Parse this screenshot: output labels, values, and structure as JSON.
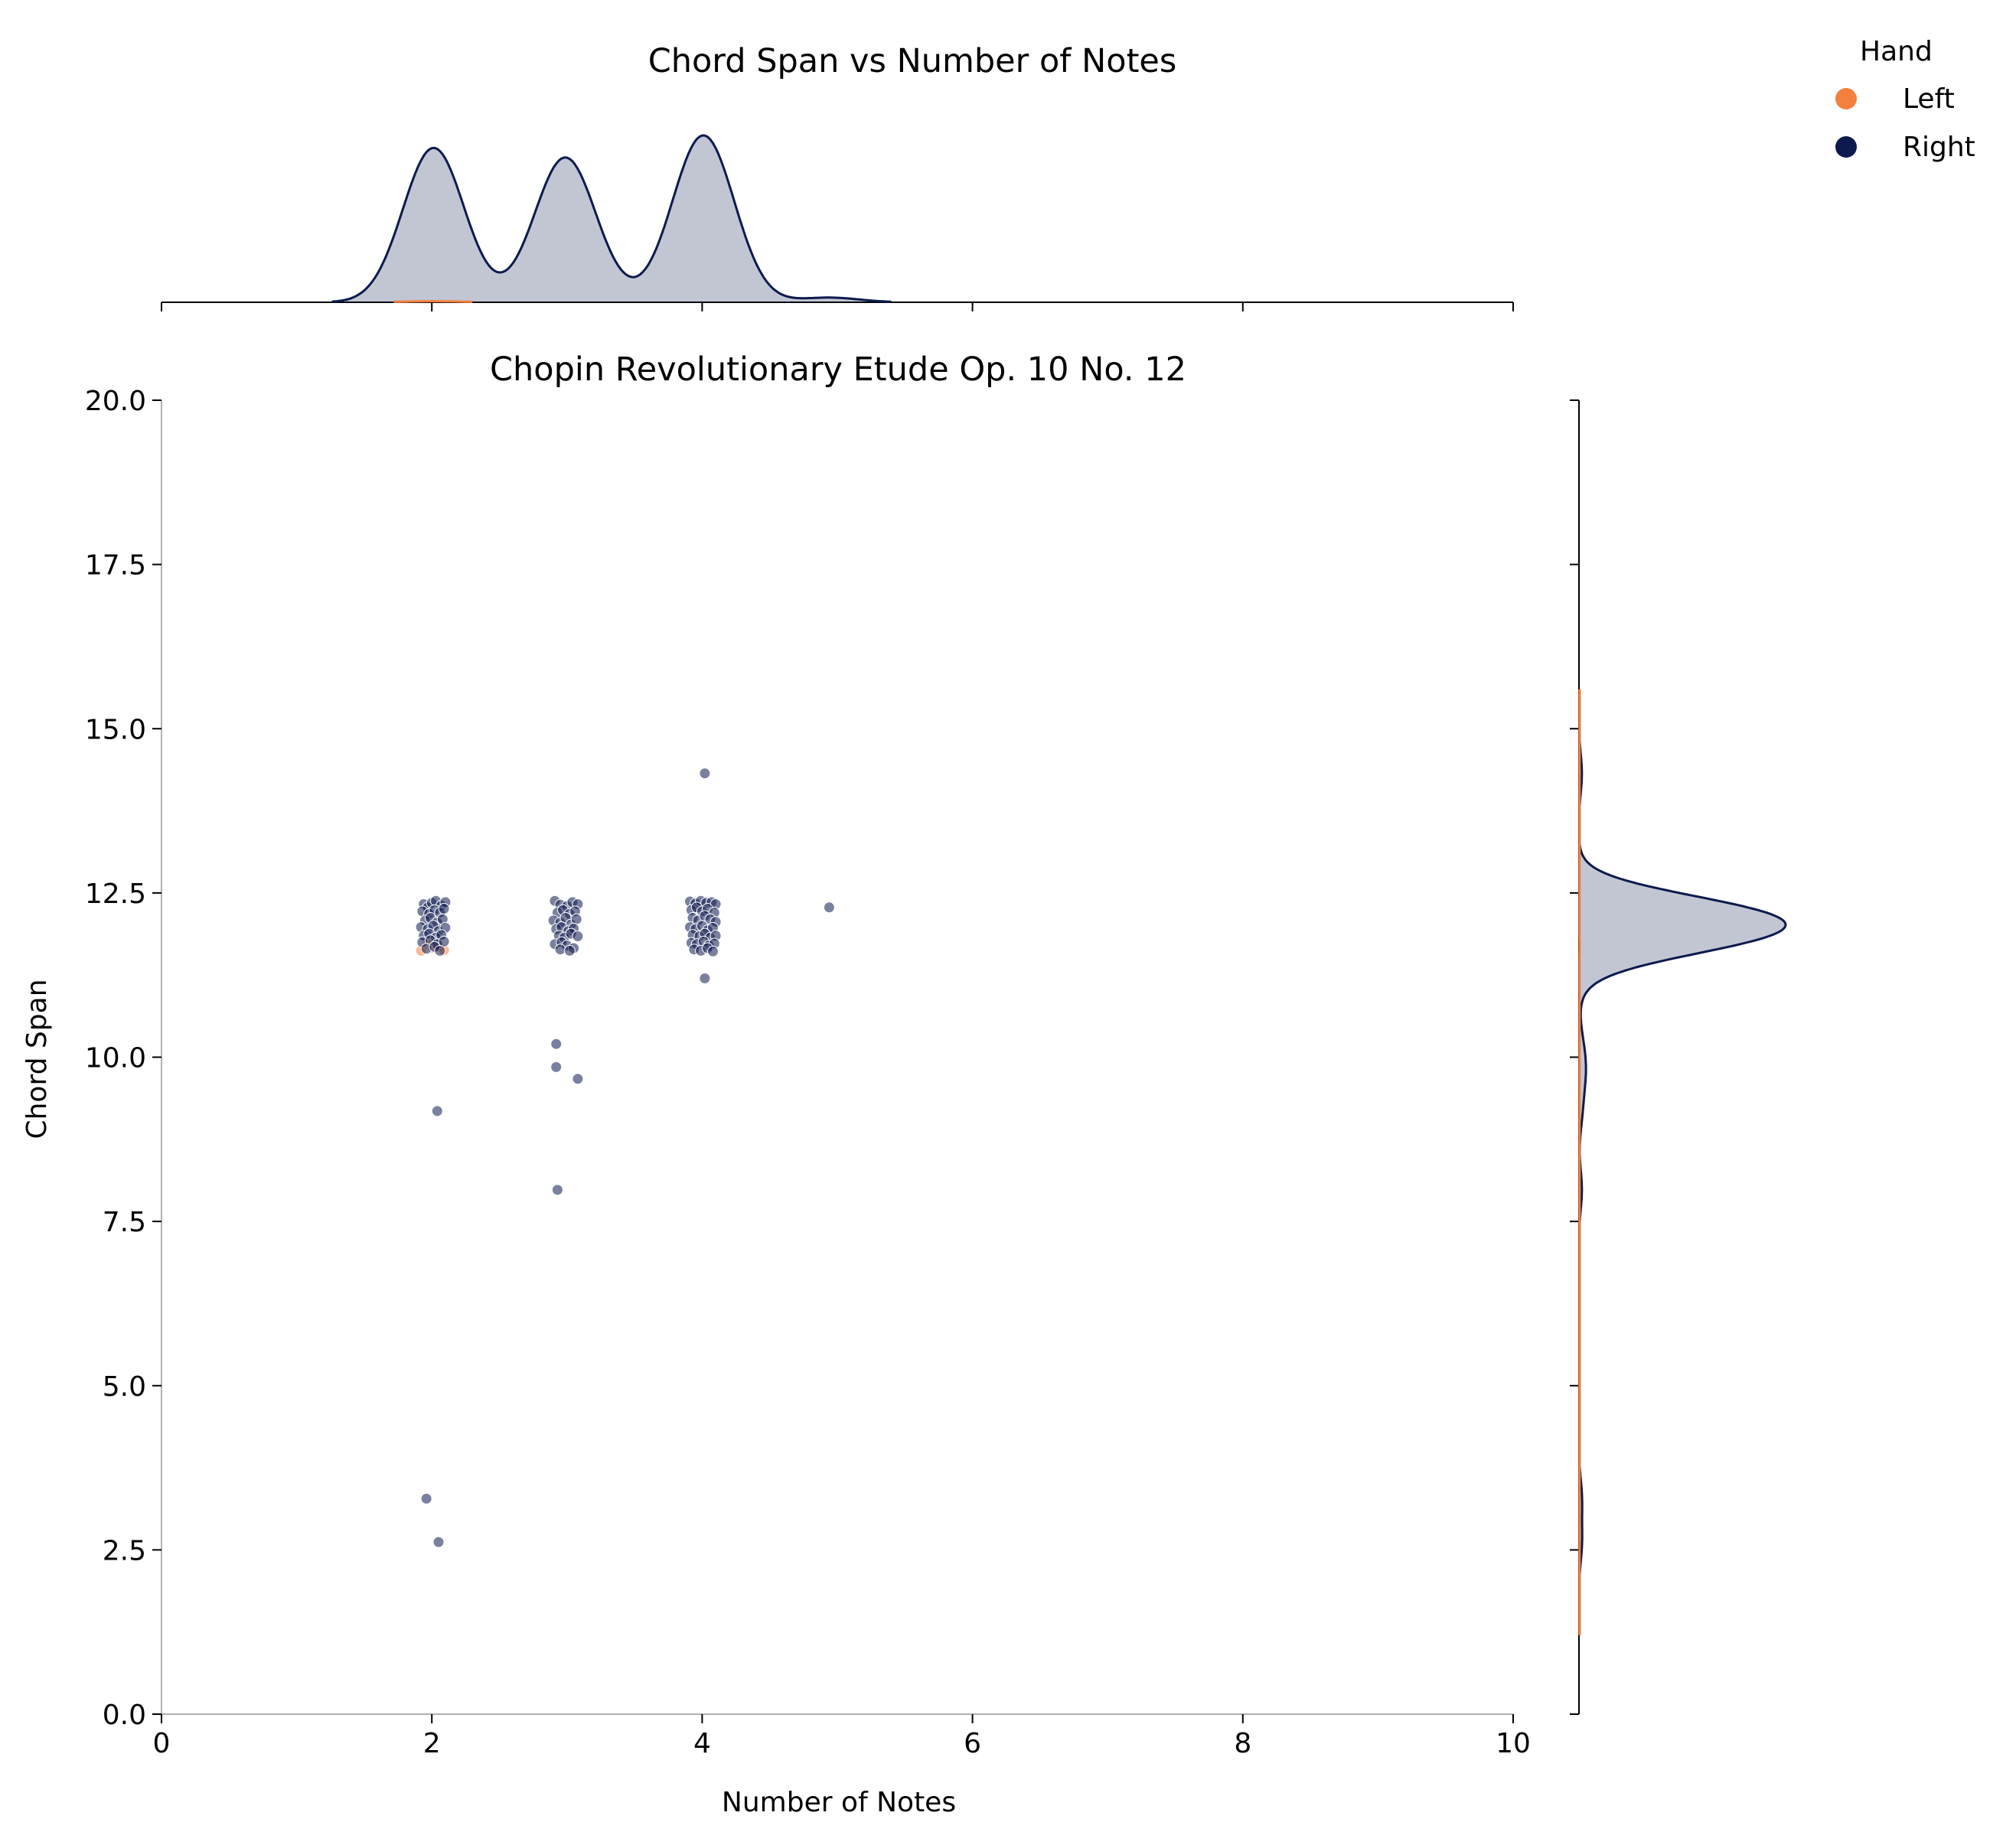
{
  "chart_data": {
    "type": "scatter",
    "suptitle": "Chord Span vs  Number of Notes",
    "title": "Chopin Revolutionary Etude Op. 10 No. 12",
    "xlabel": "Number of Notes",
    "ylabel": "Chord Span",
    "xlim": [
      0,
      10
    ],
    "ylim": [
      0,
      20
    ],
    "xticks": [
      "0",
      "2",
      "4",
      "6",
      "8",
      "10"
    ],
    "yticks": [
      "0.0",
      "2.5",
      "5.0",
      "7.5",
      "10.0",
      "12.5",
      "15.0",
      "17.5",
      "20.0"
    ],
    "grid": false,
    "marginals": "kde",
    "legend": {
      "title": "Hand",
      "placement": "top-right",
      "entries": [
        {
          "label": "Left",
          "color": "#f5803d"
        },
        {
          "label": "Right",
          "color": "#0c1a4e"
        }
      ]
    },
    "series": [
      {
        "name": "Left",
        "color": "#f5803d",
        "points": [
          [
            1.92,
            11.62
          ],
          [
            1.97,
            11.72
          ],
          [
            2.01,
            11.66
          ],
          [
            2.05,
            11.68
          ],
          [
            2.09,
            11.63
          ]
        ]
      },
      {
        "name": "Right",
        "color": "#0c1a4e",
        "points": [
          [
            1.94,
            12.33
          ],
          [
            1.97,
            12.28
          ],
          [
            2.0,
            12.35
          ],
          [
            2.03,
            12.38
          ],
          [
            2.07,
            12.31
          ],
          [
            2.1,
            12.36
          ],
          [
            1.93,
            12.22
          ],
          [
            1.98,
            12.18
          ],
          [
            2.02,
            12.24
          ],
          [
            2.06,
            12.2
          ],
          [
            2.09,
            12.26
          ],
          [
            1.95,
            12.08
          ],
          [
            1.99,
            12.12
          ],
          [
            2.04,
            12.05
          ],
          [
            2.08,
            12.1
          ],
          [
            1.92,
            11.98
          ],
          [
            1.97,
            11.95
          ],
          [
            2.01,
            12.0
          ],
          [
            2.05,
            11.92
          ],
          [
            2.1,
            11.97
          ],
          [
            1.94,
            11.85
          ],
          [
            1.98,
            11.88
          ],
          [
            2.03,
            11.82
          ],
          [
            2.07,
            11.86
          ],
          [
            1.93,
            11.75
          ],
          [
            1.99,
            11.78
          ],
          [
            2.04,
            11.72
          ],
          [
            2.09,
            11.76
          ],
          [
            1.96,
            11.65
          ],
          [
            2.02,
            11.68
          ],
          [
            2.06,
            11.62
          ],
          [
            2.04,
            9.18
          ],
          [
            1.96,
            3.28
          ],
          [
            2.05,
            2.62
          ],
          [
            2.91,
            12.38
          ],
          [
            2.95,
            12.32
          ],
          [
            3.0,
            12.3
          ],
          [
            3.04,
            12.36
          ],
          [
            3.08,
            12.33
          ],
          [
            2.93,
            12.2
          ],
          [
            2.97,
            12.24
          ],
          [
            3.02,
            12.18
          ],
          [
            3.06,
            12.22
          ],
          [
            2.9,
            12.08
          ],
          [
            2.95,
            12.05
          ],
          [
            2.99,
            12.12
          ],
          [
            3.03,
            12.02
          ],
          [
            3.07,
            12.1
          ],
          [
            2.92,
            11.95
          ],
          [
            2.96,
            11.98
          ],
          [
            3.01,
            11.92
          ],
          [
            3.05,
            11.96
          ],
          [
            2.94,
            11.85
          ],
          [
            2.98,
            11.82
          ],
          [
            3.03,
            11.88
          ],
          [
            3.08,
            11.84
          ],
          [
            2.91,
            11.72
          ],
          [
            2.96,
            11.75
          ],
          [
            3.0,
            11.7
          ],
          [
            3.05,
            11.66
          ],
          [
            2.95,
            11.64
          ],
          [
            3.02,
            11.62
          ],
          [
            2.92,
            10.2
          ],
          [
            2.92,
            9.85
          ],
          [
            3.08,
            9.67
          ],
          [
            2.93,
            7.98
          ],
          [
            3.91,
            12.37
          ],
          [
            3.95,
            12.34
          ],
          [
            3.99,
            12.38
          ],
          [
            4.03,
            12.35
          ],
          [
            4.07,
            12.36
          ],
          [
            4.1,
            12.33
          ],
          [
            3.92,
            12.24
          ],
          [
            3.96,
            12.28
          ],
          [
            4.0,
            12.22
          ],
          [
            4.04,
            12.26
          ],
          [
            4.09,
            12.2
          ],
          [
            3.93,
            12.12
          ],
          [
            3.97,
            12.08
          ],
          [
            4.02,
            12.15
          ],
          [
            4.06,
            12.1
          ],
          [
            4.1,
            12.06
          ],
          [
            3.91,
            11.98
          ],
          [
            3.95,
            11.95
          ],
          [
            4.0,
            12.0
          ],
          [
            4.04,
            11.93
          ],
          [
            4.08,
            11.97
          ],
          [
            3.93,
            11.86
          ],
          [
            3.98,
            11.84
          ],
          [
            4.02,
            11.88
          ],
          [
            4.06,
            11.82
          ],
          [
            4.1,
            11.85
          ],
          [
            3.92,
            11.74
          ],
          [
            3.96,
            11.72
          ],
          [
            4.01,
            11.76
          ],
          [
            4.05,
            11.7
          ],
          [
            4.09,
            11.73
          ],
          [
            3.94,
            11.64
          ],
          [
            3.99,
            11.62
          ],
          [
            4.04,
            11.66
          ],
          [
            4.08,
            11.61
          ],
          [
            4.02,
            14.32
          ],
          [
            4.02,
            11.2
          ],
          [
            4.94,
            12.28
          ]
        ]
      }
    ]
  }
}
